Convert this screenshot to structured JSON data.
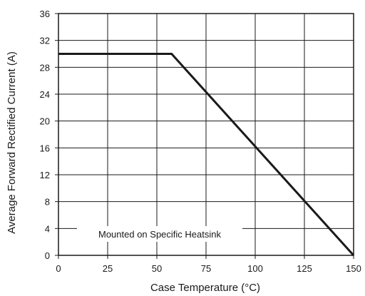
{
  "chart_data": {
    "type": "line",
    "title": "",
    "xlabel": "Case Temperature (°C)",
    "ylabel": "Average Forward Rectified Current (A)",
    "xlim": [
      0,
      150
    ],
    "ylim": [
      0,
      36
    ],
    "xticks": [
      0,
      25,
      50,
      75,
      100,
      125,
      150
    ],
    "yticks": [
      0,
      4,
      8,
      12,
      16,
      20,
      24,
      28,
      32,
      36
    ],
    "grid": true,
    "legend": "none",
    "series": [
      {
        "x": [
          0,
          57.5,
          150
        ],
        "y": [
          30,
          30,
          0
        ]
      }
    ],
    "annotations": [
      {
        "text": "Mounted on Specific Heatsink"
      }
    ]
  }
}
